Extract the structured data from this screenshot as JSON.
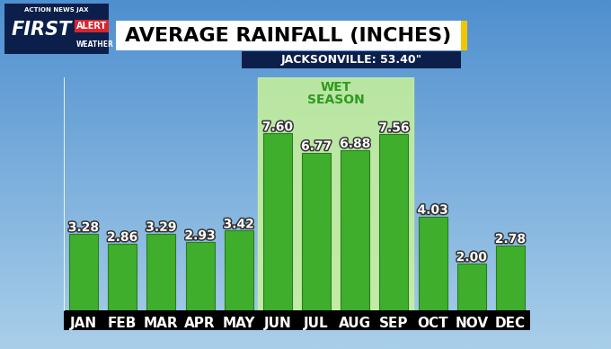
{
  "chart_data": {
    "type": "bar",
    "title": "AVERAGE RAINFALL (INCHES)",
    "subtitle": "JACKSONVILLE: 53.40\"",
    "branding": [
      "ACTION NEWS JAX",
      "FIRST",
      "ALERT",
      "WEATHER"
    ],
    "categories": [
      "JAN",
      "FEB",
      "MAR",
      "APR",
      "MAY",
      "JUN",
      "JUL",
      "AUG",
      "SEP",
      "OCT",
      "NOV",
      "DEC"
    ],
    "values": [
      3.28,
      2.86,
      3.29,
      2.93,
      3.42,
      7.6,
      6.77,
      6.88,
      7.56,
      4.03,
      2.0,
      2.78
    ],
    "value_labels": [
      "3.28",
      "2.86",
      "3.29",
      "2.93",
      "3.42",
      "7.60",
      "6.77",
      "6.88",
      "7.56",
      "4.03",
      "2.00",
      "2.78"
    ],
    "color": "#3fae2c",
    "ylim": [
      0,
      10
    ],
    "yticks": [],
    "grid": false,
    "data_labels": true,
    "tick_labels": "x",
    "annotations": [
      {
        "text": "WET SEASON",
        "from": "JUN",
        "to": "SEP"
      }
    ]
  }
}
